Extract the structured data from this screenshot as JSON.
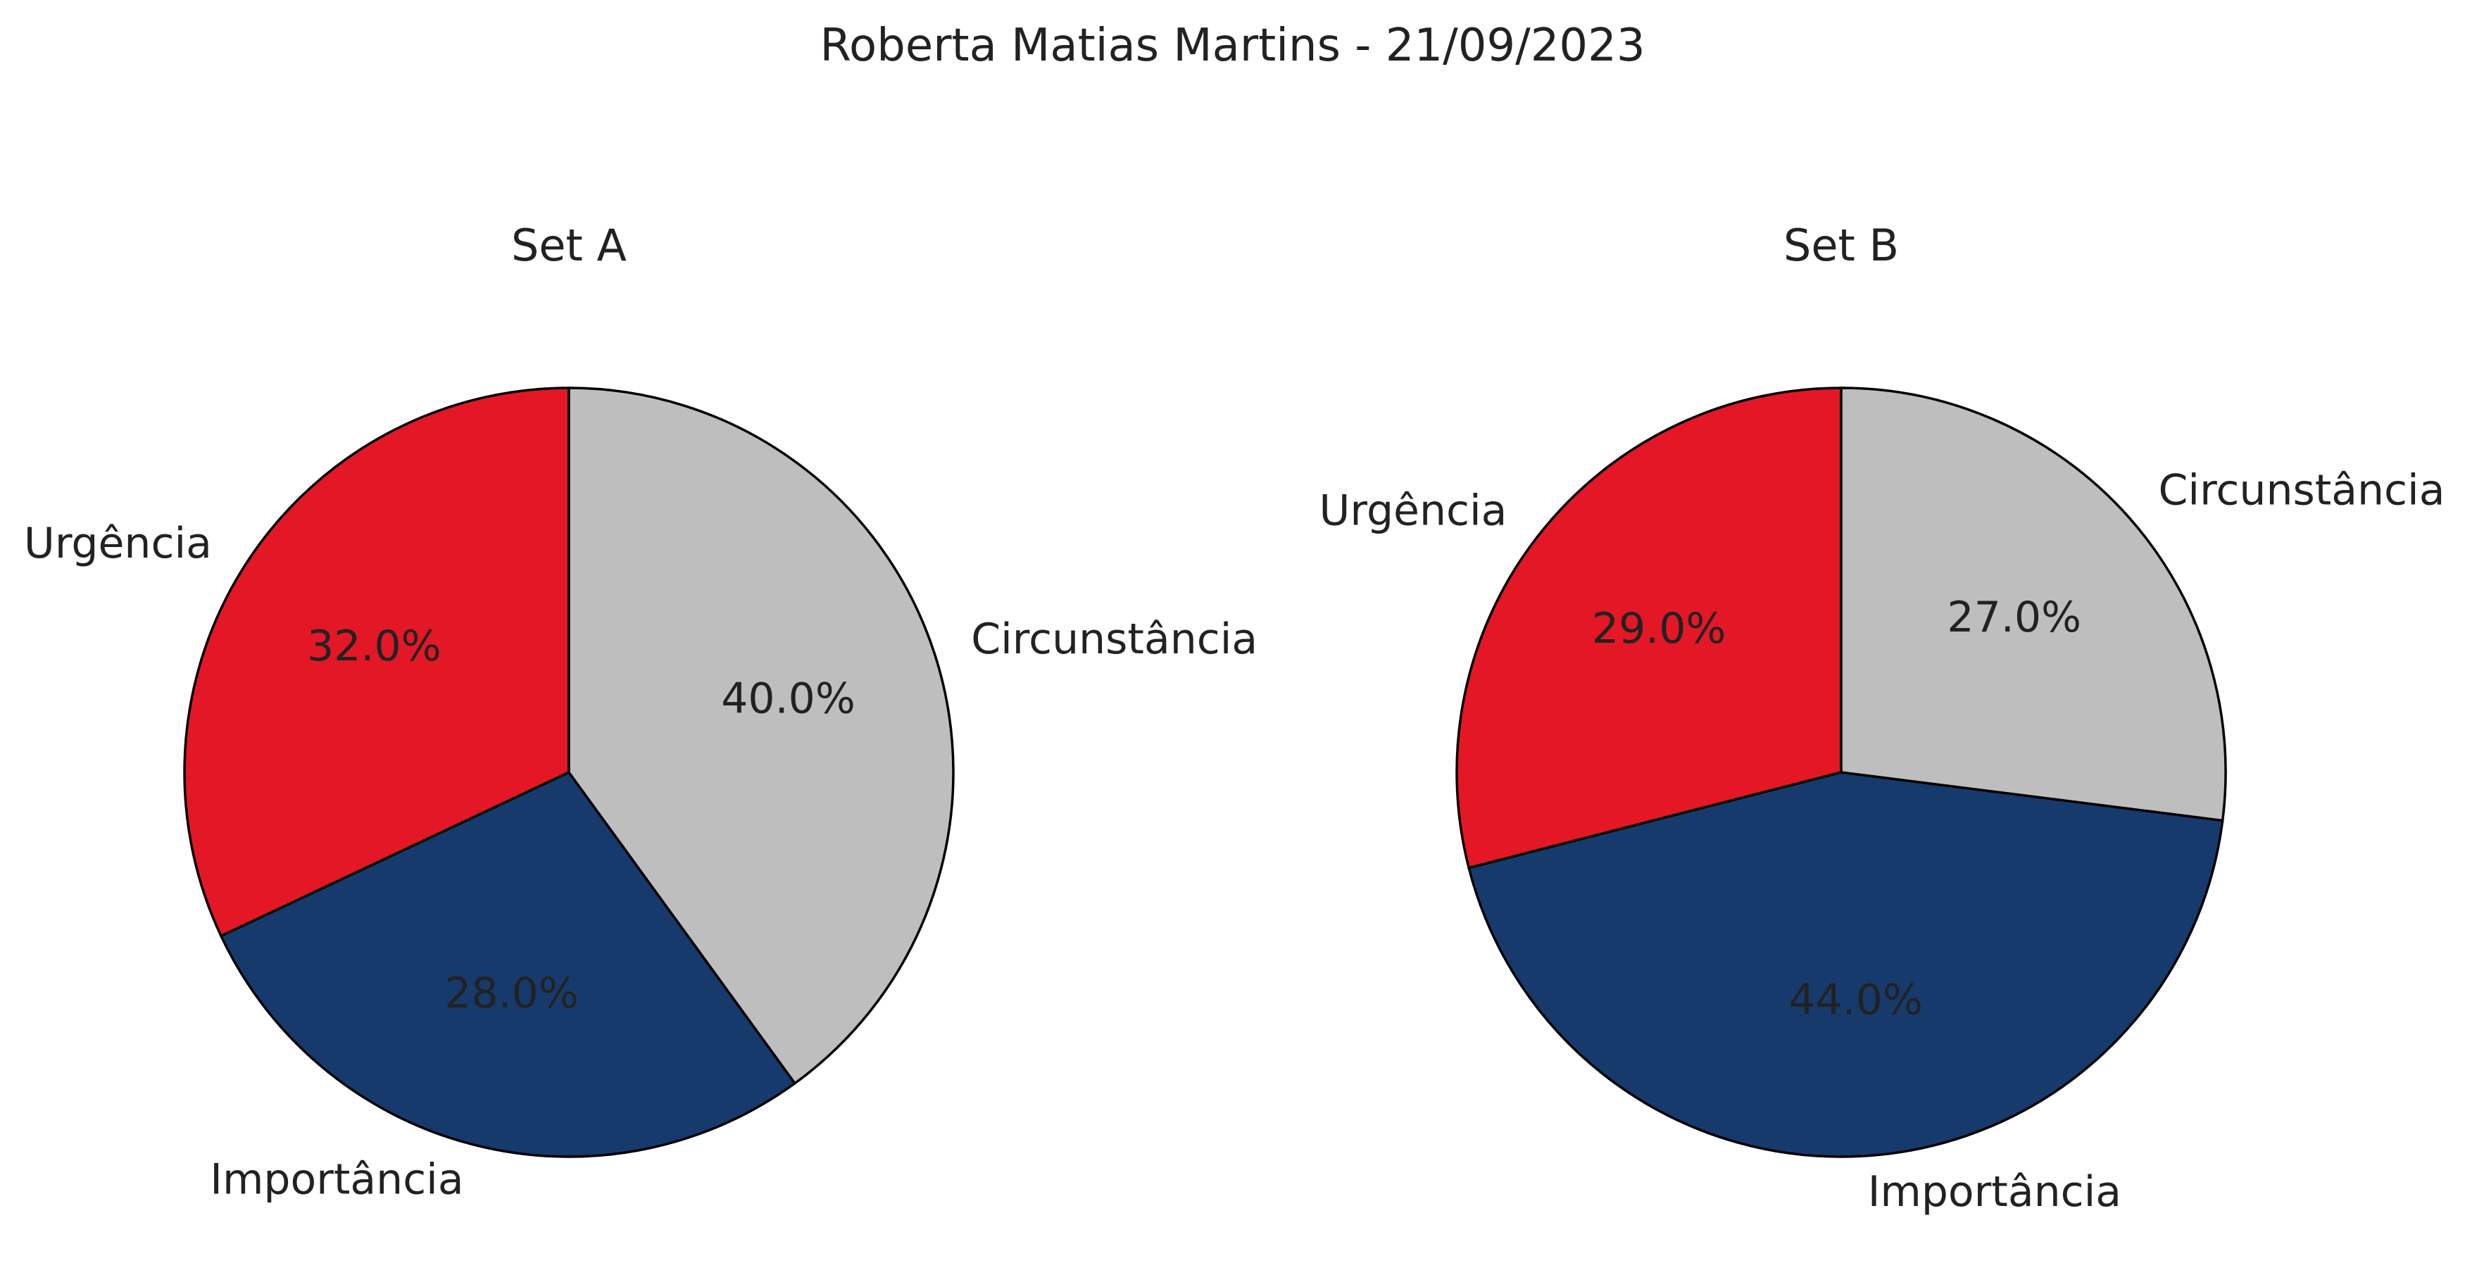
{
  "page_title": "Roberta Matias Martins - 21/09/2023",
  "chart_data": [
    {
      "type": "pie",
      "title": "Set A",
      "categories": [
        "Urgência",
        "Importância",
        "Circunstância"
      ],
      "values": [
        32.0,
        28.0,
        40.0
      ],
      "value_labels": [
        "32.0%",
        "28.0%",
        "40.0%"
      ],
      "colors": [
        "#e31726",
        "#173a6d",
        "#bdbebd"
      ],
      "start_angle": 90,
      "direction": "counterclockwise"
    },
    {
      "type": "pie",
      "title": "Set B",
      "categories": [
        "Urgência",
        "Importância",
        "Circunstância"
      ],
      "values": [
        29.0,
        44.0,
        27.0
      ],
      "value_labels": [
        "29.0%",
        "44.0%",
        "27.0%"
      ],
      "colors": [
        "#e31726",
        "#173a6d",
        "#bdbebd"
      ],
      "start_angle": 90,
      "direction": "counterclockwise"
    }
  ]
}
